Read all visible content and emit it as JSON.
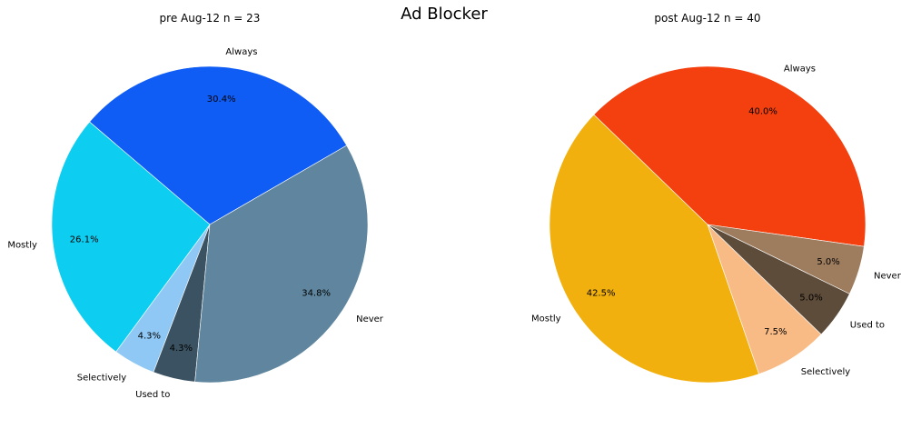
{
  "figure": {
    "title": "Ad Blocker"
  },
  "chart_data": [
    {
      "type": "pie",
      "title": "pre Aug-12  n = 23",
      "labels": [
        "Always",
        "Mostly",
        "Selectively",
        "Used to",
        "Never"
      ],
      "values": [
        30.4,
        26.1,
        4.3,
        4.3,
        34.8
      ],
      "percent_labels": [
        "30.4%",
        "26.1%",
        "4.3%",
        "4.3%",
        "34.8%"
      ],
      "colors": [
        "#105df5",
        "#0dcdf1",
        "#8fc8f5",
        "#3a5261",
        "#5f869e"
      ],
      "start_angle_deg": 30,
      "direction": "counterclockwise"
    },
    {
      "type": "pie",
      "title": "post Aug-12  n = 40",
      "labels": [
        "Always",
        "Mostly",
        "Selectively",
        "Used to",
        "Never"
      ],
      "values": [
        40.0,
        42.5,
        7.5,
        5.0,
        5.0
      ],
      "percent_labels": [
        "40.0%",
        "42.5%",
        "7.5%",
        "5.0%",
        "5.0%"
      ],
      "colors": [
        "#f3400e",
        "#f1b00d",
        "#f8bb86",
        "#5e4c3a",
        "#9e7d5f"
      ],
      "start_angle_deg": -8,
      "direction": "counterclockwise"
    }
  ]
}
